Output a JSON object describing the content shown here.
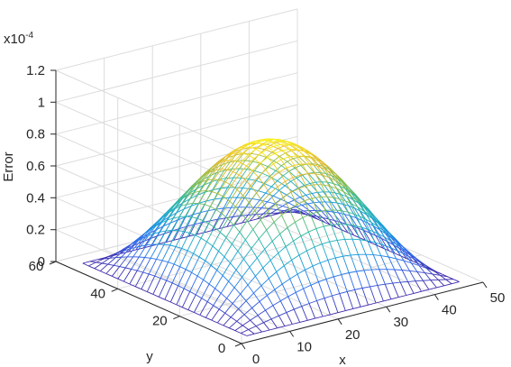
{
  "chart_data": {
    "type": "surface-mesh",
    "title": "",
    "xlabel": "x",
    "ylabel": "y",
    "zlabel": "Error",
    "z_exponent_label": {
      "base": "x10",
      "exp": "-4"
    },
    "xlim": [
      0,
      50
    ],
    "ylim": [
      0,
      60
    ],
    "zlim": [
      0,
      1.2
    ],
    "xticks": [
      0,
      10,
      20,
      30,
      40,
      50
    ],
    "yticks": [
      0,
      20,
      40,
      60
    ],
    "zticks": [
      "0",
      "0.2",
      "0.4",
      "0.6",
      "0.8",
      "1",
      "1.2"
    ],
    "grid": true,
    "colormap": "parula",
    "colormap_stops": [
      "#3e26a8",
      "#2f6bf0",
      "#13a0d8",
      "#2ab8a4",
      "#8bbd4a",
      "#e8ba30",
      "#f9f515"
    ],
    "surface": {
      "x_range": [
        3,
        47
      ],
      "y_range": [
        3,
        56
      ],
      "grid_size": [
        29,
        29
      ],
      "peak_value": 0.82,
      "shape": "peak * sin(pi*(x - xmin)/(xmax - xmin)) * sin(pi*(y - ymin)/(ymax - ymin))"
    }
  }
}
